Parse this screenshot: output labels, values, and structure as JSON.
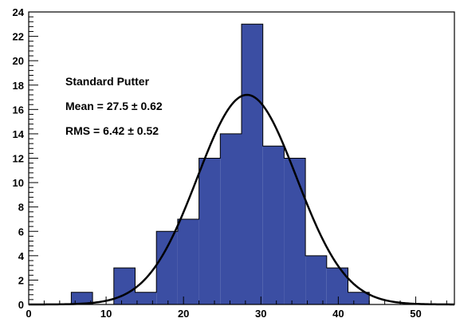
{
  "chart_data": {
    "type": "bar",
    "bins": [
      {
        "x0": 0,
        "x1": 2.75,
        "count": 0
      },
      {
        "x0": 2.75,
        "x1": 5.5,
        "count": 0
      },
      {
        "x0": 5.5,
        "x1": 8.25,
        "count": 1
      },
      {
        "x0": 8.25,
        "x1": 11.0,
        "count": 0
      },
      {
        "x0": 11.0,
        "x1": 13.75,
        "count": 3
      },
      {
        "x0": 13.75,
        "x1": 16.5,
        "count": 1
      },
      {
        "x0": 16.5,
        "x1": 19.25,
        "count": 6
      },
      {
        "x0": 19.25,
        "x1": 22.0,
        "count": 7
      },
      {
        "x0": 22.0,
        "x1": 24.75,
        "count": 12
      },
      {
        "x0": 24.75,
        "x1": 27.5,
        "count": 14
      },
      {
        "x0": 27.5,
        "x1": 30.25,
        "count": 23
      },
      {
        "x0": 30.25,
        "x1": 33.0,
        "count": 13
      },
      {
        "x0": 33.0,
        "x1": 35.75,
        "count": 12
      },
      {
        "x0": 35.75,
        "x1": 38.5,
        "count": 4
      },
      {
        "x0": 38.5,
        "x1": 41.25,
        "count": 3
      },
      {
        "x0": 41.25,
        "x1": 44.0,
        "count": 1
      },
      {
        "x0": 44.0,
        "x1": 46.75,
        "count": 0
      },
      {
        "x0": 46.75,
        "x1": 49.5,
        "count": 0
      },
      {
        "x0": 49.5,
        "x1": 52.25,
        "count": 0
      },
      {
        "x0": 52.25,
        "x1": 55.0,
        "count": 0
      }
    ],
    "fit": {
      "type": "gaussian",
      "peak": 17.2,
      "mean": 28.2,
      "sigma": 6.4
    },
    "xlim": [
      0,
      55
    ],
    "ylim": [
      0,
      24
    ],
    "x_ticks": [
      0,
      10,
      20,
      30,
      40,
      50
    ],
    "y_ticks": [
      0,
      2,
      4,
      6,
      8,
      10,
      12,
      14,
      16,
      18,
      20,
      22,
      24
    ],
    "annotation": {
      "name": "Standard Putter",
      "mean_line": "Mean = 27.5 ± 0.62",
      "rms_line": "RMS = 6.42 ± 0.52"
    },
    "title": "",
    "xlabel": "",
    "ylabel": "",
    "grid": false,
    "bar_color": "#3b4ea3",
    "edge_color": "#000000",
    "fit_color": "#000000"
  }
}
